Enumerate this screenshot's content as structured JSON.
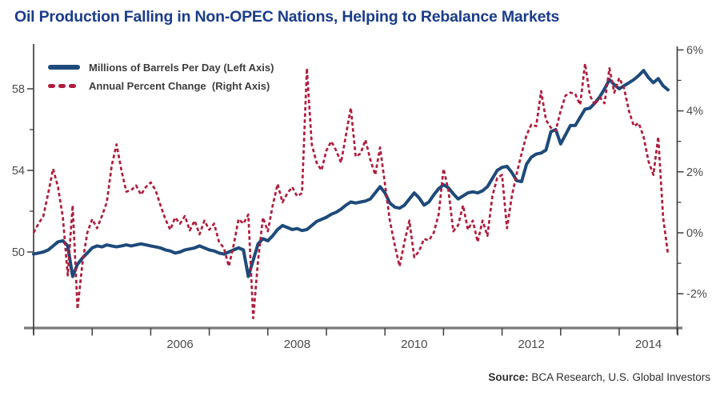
{
  "title": "Oil Production Falling in Non-OPEC Nations, Helping to Rebalance Markets",
  "source": {
    "label": "Source:",
    "text": " BCA Research, U.S. Global Investors"
  },
  "colors": {
    "title_blue": "#1a3c8c",
    "production_line": "#1d4a7a",
    "pct_change_line": "#b01c3c",
    "axis_dark": "#3f3f3f",
    "axis_baseline_gray": "#7a7a7a",
    "tick_text": "#4b4b4b"
  },
  "legend": [
    {
      "label": "Millions of Barrels Per Day (Left Axis)",
      "color": "#1d4a7a",
      "style": "solid"
    },
    {
      "label": "Annual Percent Change  (Right Axis)",
      "color": "#b01c3c",
      "style": "dashed"
    }
  ],
  "chart_data": {
    "type": "line",
    "title": "Oil Production Falling in Non-OPEC Nations, Helping to Rebalance Markets",
    "x_start_year": 2005,
    "x_interval_months": 1,
    "x_end_label": "late 2015",
    "grid": false,
    "legend_position": "top-left",
    "x_axis": {
      "tick_years": [
        2005,
        2006,
        2007,
        2008,
        2009,
        2010,
        2011,
        2012,
        2013,
        2014,
        2015,
        2016
      ],
      "labels": [
        {
          "text": "2006",
          "year": 2006
        },
        {
          "text": "2008",
          "year": 2008
        },
        {
          "text": "2010",
          "year": 2010
        },
        {
          "text": "2012",
          "year": 2012
        },
        {
          "text": "2014",
          "year": 2014
        }
      ]
    },
    "left_axis": {
      "title": "Millions of Barrels Per Day",
      "tick_labels": [
        "58",
        "54",
        "50"
      ],
      "tick_values": [
        58,
        54,
        50
      ],
      "minor_tick_values": [
        56,
        52
      ],
      "approx_range": [
        46.3,
        60.2
      ]
    },
    "right_axis": {
      "title": "Annual Percent Change",
      "tick_labels": [
        "6%",
        "4%",
        "2%",
        "0%",
        "-2%"
      ],
      "tick_values": [
        6,
        4,
        2,
        0,
        -2
      ],
      "minor_tick_values": [
        5,
        3,
        1,
        -1
      ],
      "approx_range": [
        -3.1,
        6.2
      ]
    },
    "series": [
      {
        "name": "Millions of Barrels Per Day (Left Axis)",
        "axis": "left",
        "color": "#1d4a7a",
        "style": "solid",
        "values": [
          49.9,
          49.95,
          50.0,
          50.1,
          50.3,
          50.5,
          50.55,
          50.3,
          48.8,
          49.4,
          49.7,
          49.95,
          50.2,
          50.3,
          50.25,
          50.35,
          50.3,
          50.25,
          50.3,
          50.35,
          50.3,
          50.35,
          50.4,
          50.35,
          50.3,
          50.25,
          50.2,
          50.1,
          50.05,
          49.95,
          50.0,
          50.1,
          50.15,
          50.2,
          50.3,
          50.2,
          50.1,
          50.05,
          49.95,
          49.9,
          50.0,
          50.1,
          50.2,
          50.1,
          48.8,
          49.6,
          50.4,
          50.65,
          50.55,
          50.8,
          51.1,
          51.3,
          51.2,
          51.1,
          51.15,
          51.05,
          51.1,
          51.3,
          51.5,
          51.6,
          51.7,
          51.85,
          51.95,
          52.1,
          52.3,
          52.45,
          52.4,
          52.45,
          52.5,
          52.6,
          52.9,
          53.2,
          52.9,
          52.4,
          52.2,
          52.15,
          52.3,
          52.6,
          52.9,
          52.65,
          52.3,
          52.45,
          52.8,
          53.1,
          53.3,
          53.15,
          52.85,
          52.6,
          52.75,
          52.9,
          52.95,
          52.9,
          53.0,
          53.2,
          53.6,
          54.0,
          54.15,
          54.2,
          53.9,
          53.5,
          53.45,
          54.3,
          54.65,
          54.8,
          54.85,
          55.0,
          55.9,
          56.0,
          55.3,
          55.75,
          56.2,
          56.2,
          56.6,
          57.0,
          57.05,
          57.3,
          57.6,
          58.0,
          58.45,
          58.2,
          58.0,
          58.15,
          58.3,
          58.45,
          58.65,
          58.9,
          58.55,
          58.3,
          58.5,
          58.15,
          57.95
        ]
      },
      {
        "name": "Annual Percent Change (Right Axis)",
        "axis": "right",
        "color": "#b01c3c",
        "style": "dashed",
        "values": [
          0.0,
          0.3,
          0.55,
          1.3,
          2.1,
          1.5,
          0.5,
          -1.4,
          0.9,
          -2.5,
          -1.0,
          0.0,
          0.45,
          0.15,
          0.55,
          1.0,
          2.2,
          2.9,
          2.05,
          1.35,
          1.4,
          1.55,
          1.25,
          1.5,
          1.65,
          1.4,
          0.9,
          0.45,
          0.1,
          0.5,
          0.3,
          0.55,
          0.08,
          0.4,
          -0.05,
          0.4,
          0.1,
          0.3,
          -0.3,
          -0.5,
          -1.1,
          -0.4,
          0.45,
          0.3,
          0.6,
          -2.8,
          -0.9,
          0.5,
          0.05,
          0.9,
          1.6,
          1.0,
          1.3,
          1.5,
          1.2,
          1.3,
          5.4,
          2.9,
          2.3,
          2.05,
          2.7,
          3.0,
          2.7,
          2.3,
          3.2,
          4.1,
          2.5,
          2.6,
          3.05,
          2.4,
          1.9,
          2.8,
          1.6,
          0.4,
          -0.4,
          -1.1,
          -0.3,
          0.4,
          -0.8,
          -0.6,
          -0.2,
          -0.25,
          0.0,
          0.6,
          2.1,
          1.4,
          0.05,
          0.25,
          0.9,
          0.1,
          0.4,
          -0.3,
          0.4,
          -0.1,
          1.2,
          1.8,
          1.9,
          0.15,
          1.2,
          1.95,
          2.6,
          3.2,
          3.55,
          3.5,
          4.65,
          3.7,
          3.45,
          3.35,
          4.0,
          4.5,
          4.6,
          4.55,
          4.2,
          5.55,
          4.5,
          4.2,
          4.45,
          4.25,
          5.4,
          4.6,
          5.08,
          4.74,
          4.0,
          3.5,
          3.6,
          3.15,
          2.35,
          1.9,
          3.15,
          0.5,
          -0.7
        ]
      }
    ]
  }
}
